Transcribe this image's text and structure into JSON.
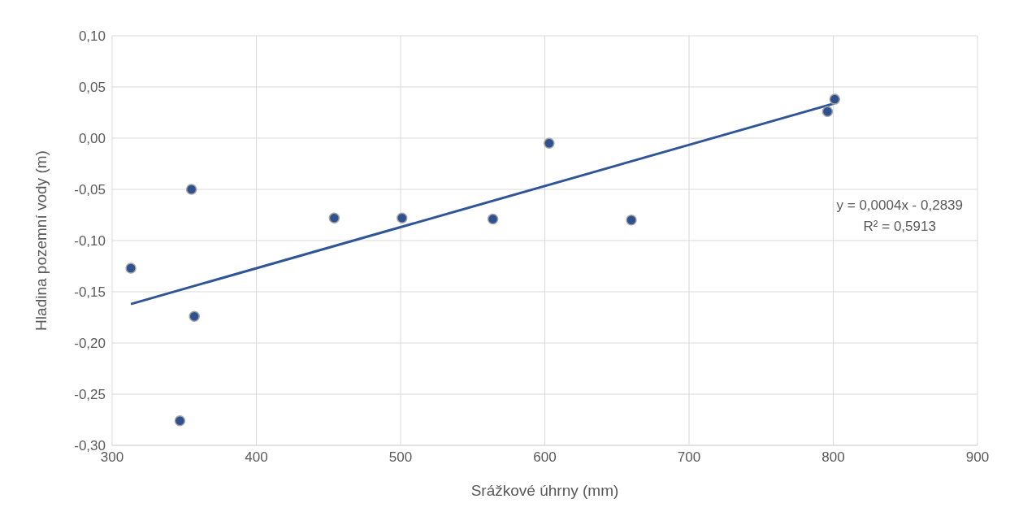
{
  "chart_data": {
    "type": "scatter",
    "xlabel": "Srážkové úhrny (mm)",
    "ylabel": "Hladina pozemní vody (m)",
    "xlim": [
      300,
      900
    ],
    "xticks": [
      300,
      400,
      500,
      600,
      700,
      800,
      900
    ],
    "ylim": [
      -0.3,
      0.1
    ],
    "yticks": [
      {
        "value": -0.3,
        "label": "-0,30"
      },
      {
        "value": -0.25,
        "label": "-0,25"
      },
      {
        "value": -0.2,
        "label": "-0,20"
      },
      {
        "value": -0.15,
        "label": "-0,15"
      },
      {
        "value": -0.1,
        "label": "-0,10"
      },
      {
        "value": -0.05,
        "label": "-0,05"
      },
      {
        "value": 0,
        "label": "0,00"
      },
      {
        "value": 0.05,
        "label": "0,05"
      },
      {
        "value": 0.1,
        "label": "0,10"
      }
    ],
    "grid": true,
    "series": [
      {
        "marker": "circle",
        "color": "#2f528f",
        "x": [
          313,
          355,
          357,
          347,
          454,
          501,
          564,
          603,
          660,
          796,
          801
        ],
        "values": [
          -0.127,
          -0.05,
          -0.174,
          -0.276,
          -0.078,
          -0.078,
          -0.079,
          -0.005,
          -0.08,
          0.026,
          0.038
        ]
      },
      {
        "type": "line",
        "marker": "none",
        "color": "#2f5597",
        "x": [
          313,
          801
        ],
        "values": [
          -0.162,
          0.034
        ]
      }
    ],
    "annotations": [
      "y = 0,0004x - 0,2839",
      "R² = 0,5913"
    ]
  }
}
